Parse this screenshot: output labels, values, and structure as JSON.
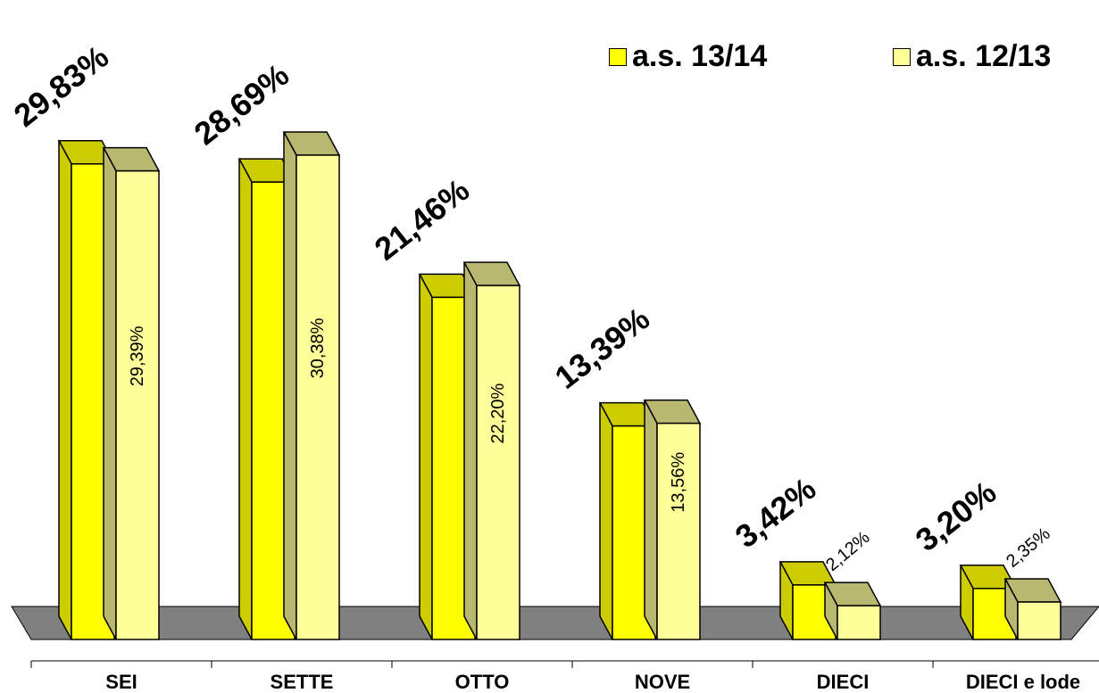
{
  "chart_data": {
    "type": "bar",
    "title": "",
    "xlabel": "",
    "ylabel": "",
    "ylim": [
      0,
      32
    ],
    "grid": false,
    "legend_position": "top-right",
    "categories": [
      "SEI",
      "SETTE",
      "OTTO",
      "NOVE",
      "DIECI",
      "DIECI e lode"
    ],
    "series": [
      {
        "name": "a.s. 13/14",
        "values": [
          29.83,
          28.69,
          21.46,
          13.39,
          3.42,
          3.2
        ],
        "labels": [
          "29,83%",
          "28,69%",
          "21,46%",
          "13,39%",
          "3,42%",
          "3,20%"
        ],
        "color": "#ffff00",
        "side_color": "#cccc00"
      },
      {
        "name": "a.s. 12/13",
        "values": [
          29.39,
          30.38,
          22.2,
          13.56,
          2.12,
          2.35
        ],
        "labels": [
          "29,39%",
          "30,38%",
          "22,20%",
          "13,56%",
          "2,12%",
          "2,35%"
        ],
        "color": "#ffff99",
        "side_color": "#b8b870"
      }
    ],
    "floor_color": "#808080"
  },
  "legend": {
    "item_a": "a.s. 13/14",
    "item_b": "a.s. 12/13"
  }
}
